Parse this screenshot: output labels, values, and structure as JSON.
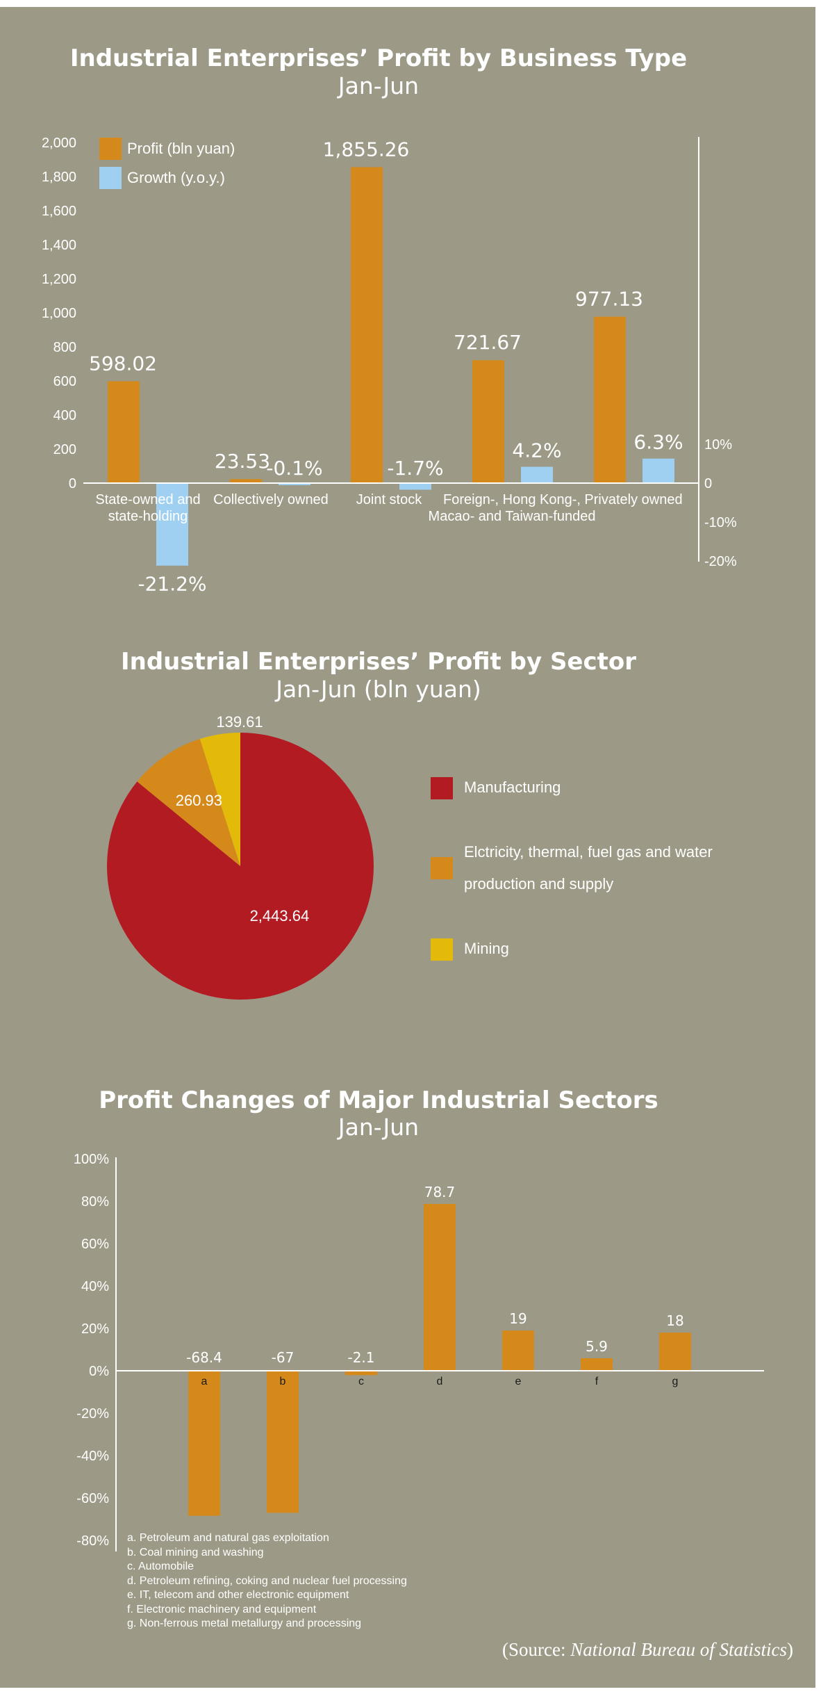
{
  "colors": {
    "background": "#9c9a86",
    "profit": "#d4891a",
    "growth": "#9fd0f2",
    "manufacturing": "#b31b23",
    "electricity": "#d4891a",
    "mining": "#e3b90a",
    "text": "#ffffff"
  },
  "chart1": {
    "title": "Industrial Enterprises’ Profit by Business Type",
    "subtitle": "Jan-Jun",
    "legend": [
      "Profit (bln yuan)",
      "Growth (y.o.y.)"
    ],
    "left_ticks": [
      "2,000",
      "1,800",
      "1,600",
      "1,400",
      "1,200",
      "1,000",
      "800",
      "600",
      "400",
      "200",
      "0"
    ],
    "right_ticks": [
      "10%",
      "0",
      "-10%",
      "-20%"
    ]
  },
  "chart2": {
    "title": "Industrial Enterprises’ Profit by Sector",
    "subtitle": "Jan-Jun (bln yuan)",
    "legend": [
      "Manufacturing",
      "Elctricity, thermal, fuel gas and water production and supply",
      "Mining"
    ]
  },
  "chart3": {
    "title": "Profit Changes of Major Industrial Sectors",
    "subtitle": "Jan-Jun",
    "y_ticks": [
      "100%",
      "80%",
      "60%",
      "40%",
      "20%",
      "0%",
      "-20%",
      "-40%",
      "-60%",
      "-80%"
    ],
    "notes": [
      "a. Petroleum and natural gas exploitation",
      "b. Coal mining and washing",
      "c. Automobile",
      "d. Petroleum refining, coking and nuclear fuel processing",
      "e. IT, telecom and other electronic equipment",
      "f. Electronic machinery and equipment",
      "g. Non-ferrous metal metallurgy and processing"
    ]
  },
  "source": {
    "prefix": "(Source: ",
    "name": "National Bureau of Statistics",
    "suffix": ")"
  },
  "chart_data": [
    {
      "type": "bar",
      "title": "Industrial Enterprises’ Profit by Business Type",
      "subtitle": "Jan-Jun",
      "categories": [
        [
          "State-owned and",
          "state-holding"
        ],
        [
          "Collectively owned"
        ],
        [
          "Joint stock"
        ],
        [
          "Foreign-, Hong Kong-,",
          "Macao- and Taiwan-funded"
        ],
        [
          "Privately owned"
        ]
      ],
      "series": [
        {
          "name": "Profit (bln yuan)",
          "values": [
            598.02,
            23.53,
            1855.26,
            721.67,
            977.13
          ],
          "labels": [
            "598.02",
            "23.53",
            "1,855.26",
            "721.67",
            "977.13"
          ],
          "axis": "left"
        },
        {
          "name": "Growth (y.o.y.)",
          "values": [
            -21.2,
            -0.1,
            -1.7,
            4.2,
            6.3
          ],
          "labels": [
            "-21.2%",
            "-0.1%",
            "-1.7%",
            "4.2%",
            "6.3%"
          ],
          "axis": "right"
        }
      ],
      "ylim_left": [
        0,
        2000
      ],
      "ylim_right": [
        -20,
        10
      ],
      "legend": "top-left"
    },
    {
      "type": "pie",
      "title": "Industrial Enterprises’ Profit by Sector",
      "subtitle": "Jan-Jun (bln yuan)",
      "slices": [
        {
          "name": "Manufacturing",
          "value": 2443.64,
          "label": "2,443.64",
          "color": "#b31b23"
        },
        {
          "name": "Elctricity, thermal, fuel gas and water production and supply",
          "value": 260.93,
          "label": "260.93",
          "color": "#d4891a"
        },
        {
          "name": "Mining",
          "value": 139.61,
          "label": "139.61",
          "color": "#e3b90a"
        }
      ],
      "legend": "right"
    },
    {
      "type": "bar",
      "title": "Profit Changes of Major Industrial Sectors",
      "subtitle": "Jan-Jun",
      "categories": [
        "a",
        "b",
        "c",
        "d",
        "e",
        "f",
        "g"
      ],
      "values": [
        -68.4,
        -67,
        -2.1,
        78.7,
        19,
        5.9,
        18
      ],
      "labels": [
        "-68.4",
        "-67",
        "-2.1",
        "78.7",
        "19",
        "5.9",
        "18"
      ],
      "ylim": [
        -80,
        100
      ]
    }
  ]
}
